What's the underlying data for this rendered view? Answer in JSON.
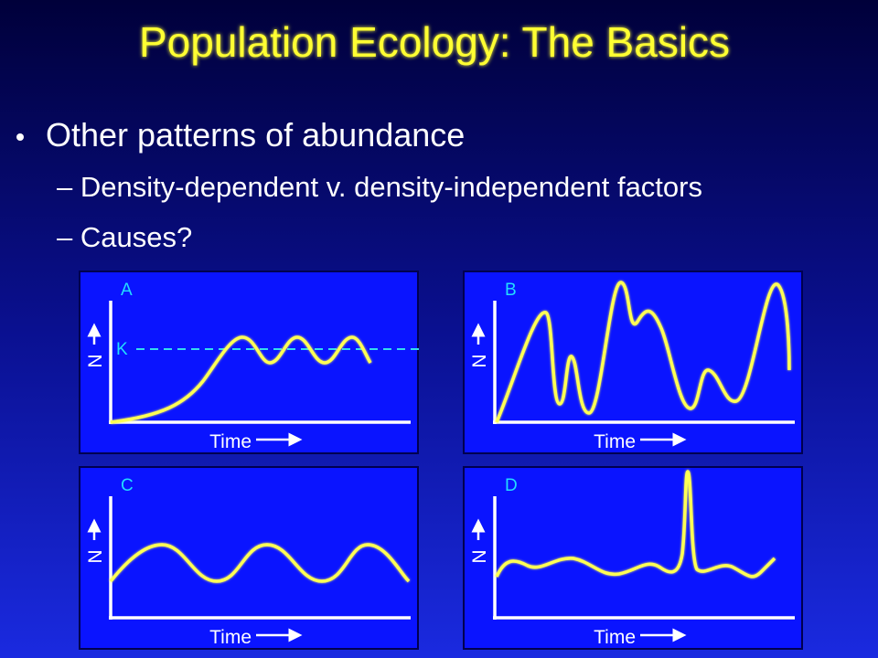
{
  "slide": {
    "title": "Population Ecology: The Basics",
    "bullet": "Other patterns of abundance",
    "sub_bullets": [
      "Density-dependent v. density-independent factors",
      "Causes?"
    ]
  },
  "panels": [
    {
      "label": "A",
      "y_label": "N",
      "x_label": "Time",
      "line_label": "K"
    },
    {
      "label": "B",
      "y_label": "N",
      "x_label": "Time"
    },
    {
      "label": "C",
      "y_label": "N",
      "x_label": "Time"
    },
    {
      "label": "D",
      "y_label": "N",
      "x_label": "Time"
    }
  ]
}
